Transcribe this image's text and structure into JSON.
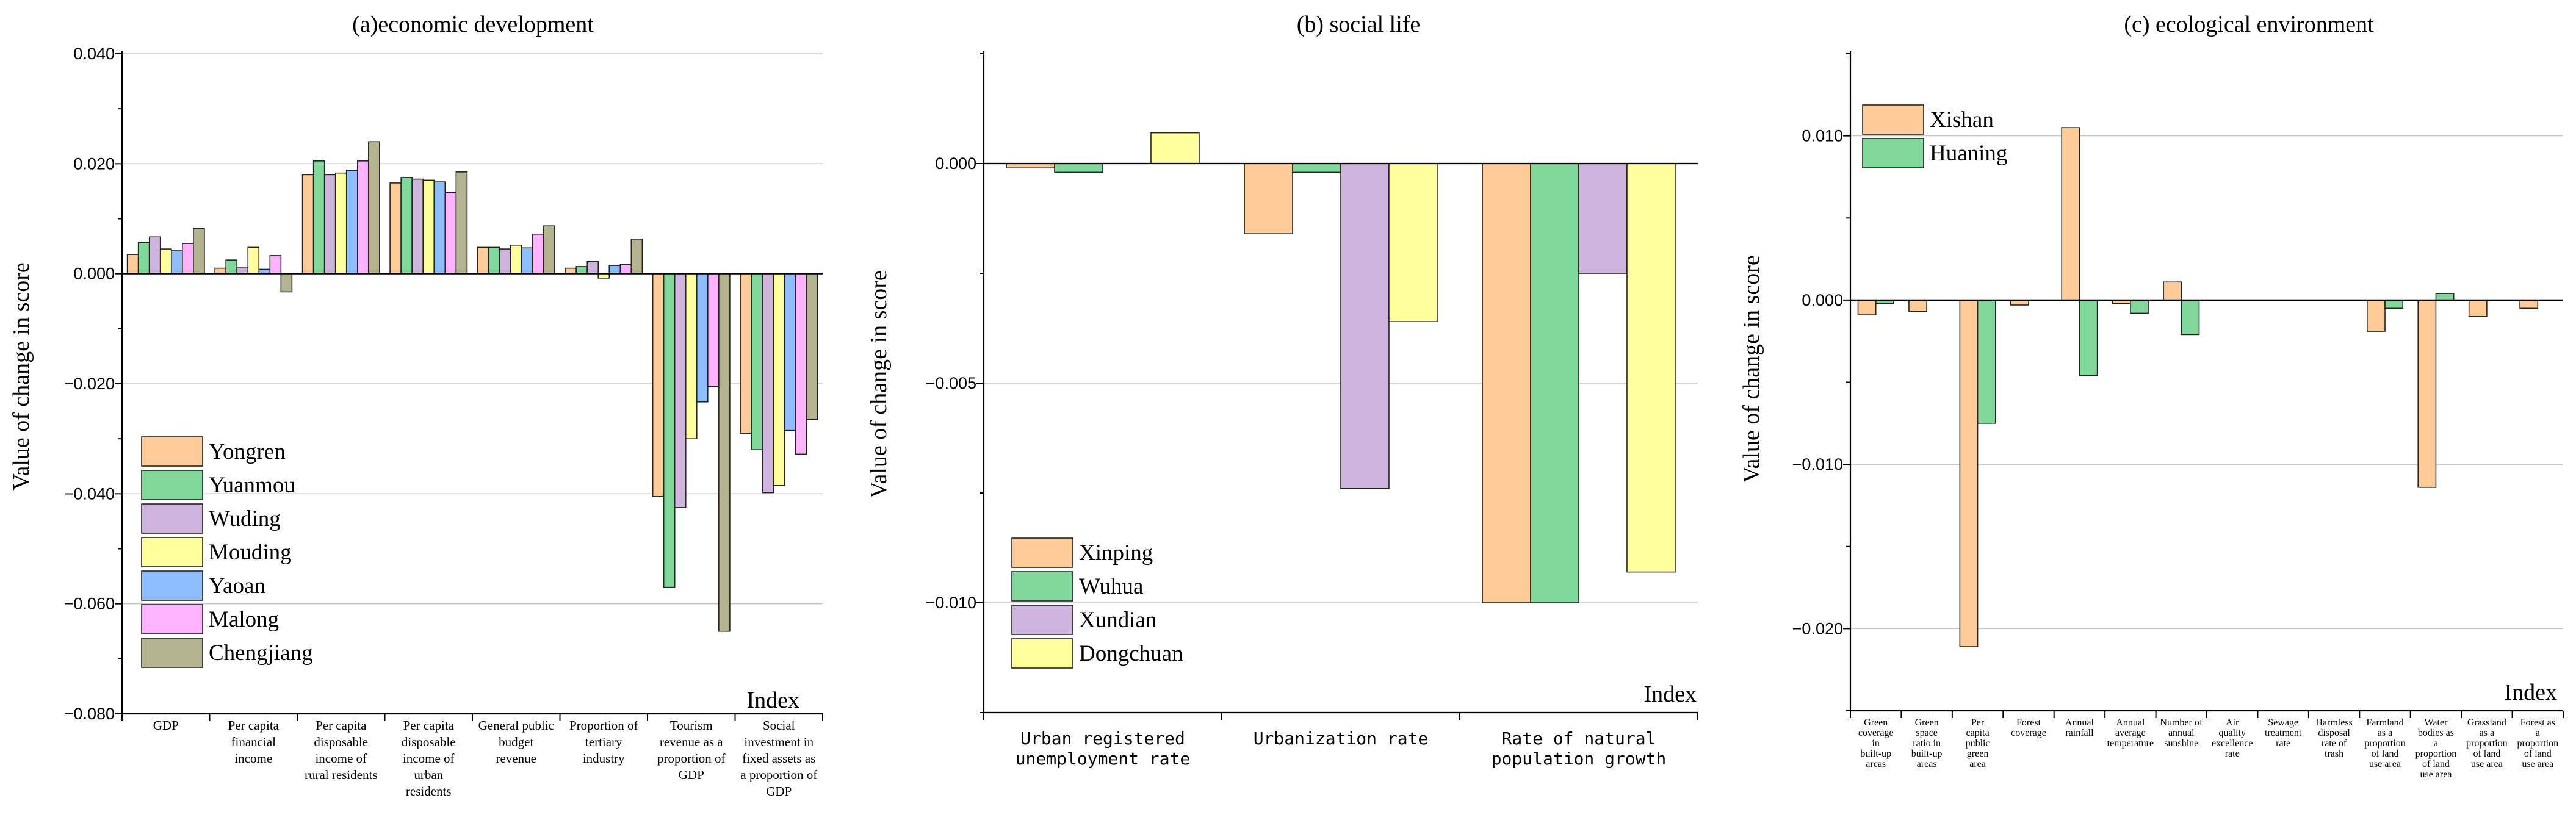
{
  "colors": {
    "Yongren": "#FFCC99",
    "Yuanmou": "#80D89A",
    "Wuding": "#CFB5DE",
    "Mouding": "#FFFF9E",
    "Yaoan": "#8EBEFF",
    "Malong": "#FFB3FF",
    "Chengjiang": "#B3B38F",
    "Xinping": "#FFCC99",
    "Wuhua": "#80D89A",
    "Xundian": "#CFB5DE",
    "Dongchuan": "#FFFF9E",
    "Xishan": "#FFCC99",
    "Huaning": "#80D89A"
  },
  "chart_data": [
    {
      "type": "bar",
      "title": "(a)economic development",
      "xlabel": "Index",
      "ylabel": "Value of change in score",
      "ylim": [
        -0.08,
        0.04
      ],
      "yticks": [
        0.04,
        0.02,
        0.0,
        -0.02,
        -0.04,
        -0.06,
        -0.08
      ],
      "ytick_labels": [
        "0.040",
        "0.020",
        "0.000",
        "−0.020",
        "−0.040",
        "−0.060",
        "−0.080"
      ],
      "grid": true,
      "legend_position": "bottom-left",
      "categories": [
        "GDP",
        "Per capita financial income",
        "Per capita disposable income of rural residents",
        "Per capita disposable income of urban residents",
        "General public budget revenue",
        "Proportion of tertiary industry",
        "Tourism revenue as a proportion of GDP",
        "Social investment in fixed assets as a proportion of GDP"
      ],
      "category_lines": [
        [
          "GDP"
        ],
        [
          "Per capita",
          "financial",
          "income"
        ],
        [
          "Per capita",
          "disposable",
          "income of",
          "rural residents"
        ],
        [
          "Per capita",
          "disposable",
          "income of",
          "urban",
          "residents"
        ],
        [
          "General public",
          "budget",
          "revenue"
        ],
        [
          "Proportion of",
          "tertiary",
          "industry"
        ],
        [
          "Tourism",
          "revenue as a",
          "proportion of",
          "GDP"
        ],
        [
          "Social",
          "investment in",
          "fixed assets as",
          "a proportion of",
          "GDP"
        ]
      ],
      "series": [
        {
          "name": "Yongren",
          "values": [
            0.0035,
            0.001,
            0.018,
            0.0165,
            0.0048,
            0.001,
            -0.0405,
            -0.029
          ]
        },
        {
          "name": "Yuanmou",
          "values": [
            0.0057,
            0.0025,
            0.0205,
            0.0175,
            0.0048,
            0.0013,
            -0.057,
            -0.032
          ]
        },
        {
          "name": "Wuding",
          "values": [
            0.0067,
            0.0012,
            0.018,
            0.0172,
            0.0045,
            0.0022,
            -0.0425,
            -0.0398
          ]
        },
        {
          "name": "Mouding",
          "values": [
            0.0045,
            0.0048,
            0.0183,
            0.017,
            0.0052,
            -0.0008,
            -0.03,
            -0.0385
          ]
        },
        {
          "name": "Yaoan",
          "values": [
            0.0043,
            0.0008,
            0.0188,
            0.0167,
            0.0047,
            0.0015,
            -0.0233,
            -0.0285
          ]
        },
        {
          "name": "Malong",
          "values": [
            0.0055,
            0.0033,
            0.0205,
            0.0148,
            0.0072,
            0.0017,
            -0.0205,
            -0.0328
          ]
        },
        {
          "name": "Chengjiang",
          "values": [
            0.0082,
            -0.0033,
            0.024,
            0.0185,
            0.0087,
            0.0063,
            -0.065,
            -0.0265
          ]
        }
      ]
    },
    {
      "type": "bar",
      "title": "(b) social life",
      "xlabel": "Index",
      "ylabel": "Value of change in score",
      "ylim": [
        -0.0125,
        0.0025
      ],
      "yticks": [
        0.0,
        -0.005,
        -0.01
      ],
      "ytick_labels": [
        "0.000",
        "−0.005",
        "−0.010"
      ],
      "grid": true,
      "legend_position": "bottom-left",
      "categories": [
        "Urban registered unemployment rate",
        "Urbanization rate",
        "Rate of natural population growth"
      ],
      "category_lines": [
        [
          "Urban registered",
          "unemployment rate"
        ],
        [
          "Urbanization rate"
        ],
        [
          "Rate of natural",
          "population growth"
        ]
      ],
      "series": [
        {
          "name": "Xinping",
          "values": [
            -0.0001,
            -0.0016,
            -0.01
          ]
        },
        {
          "name": "Wuhua",
          "values": [
            -0.0002,
            -0.0002,
            -0.01
          ]
        },
        {
          "name": "Xundian",
          "values": [
            0.0,
            -0.0074,
            -0.0025
          ]
        },
        {
          "name": "Dongchuan",
          "values": [
            0.0007,
            -0.0036,
            -0.0093
          ]
        }
      ]
    },
    {
      "type": "bar",
      "title": "(c) ecological environment",
      "xlabel": "Index",
      "ylabel": "Value of change in score",
      "ylim": [
        -0.025,
        0.015
      ],
      "yticks": [
        0.01,
        0.0,
        -0.01,
        -0.02
      ],
      "ytick_labels": [
        "0.010",
        "0.000",
        "−0.010",
        "−0.020"
      ],
      "grid": true,
      "legend_position": "top-left",
      "categories": [
        "Green coverage in built-up areas",
        "Green space ratio in built-up areas",
        "Per capita public green area",
        "Forest coverage",
        "Annual rainfall",
        "Annual average temperature",
        "Number of annual sunshine",
        "Air quality excellence rate",
        "Sewage treatment rate",
        "Harmless disposal rate of trash",
        "Farmland as a proportion of land use area",
        "Water bodies as a proportion of land use area",
        "Grassland as a proportion of land use area",
        "Forest as a proportion of land use area"
      ],
      "category_lines": [
        [
          "Green",
          "coverage",
          "in",
          "built-up",
          "areas"
        ],
        [
          "Green",
          "space",
          "ratio in",
          "built-up",
          "areas"
        ],
        [
          "Per",
          "capita",
          "public",
          "green",
          "area"
        ],
        [
          "Forest",
          "coverage"
        ],
        [
          "Annual",
          "rainfall"
        ],
        [
          "Annual",
          "average",
          "temperature"
        ],
        [
          "Number of",
          "annual",
          "sunshine"
        ],
        [
          "Air",
          "quality",
          "excellence",
          "rate"
        ],
        [
          "Sewage",
          "treatment",
          "rate"
        ],
        [
          "Harmless",
          "disposal",
          "rate of",
          "trash"
        ],
        [
          "Farmland",
          "as a",
          "proportion",
          "of land",
          "use area"
        ],
        [
          "Water",
          "bodies as",
          "a",
          "proportion",
          "of land",
          "use area"
        ],
        [
          "Grassland",
          "as a",
          "proportion",
          "of land",
          "use area"
        ],
        [
          "Forest as",
          "a",
          "proportion",
          "of land",
          "use area"
        ]
      ],
      "series": [
        {
          "name": "Xishan",
          "values": [
            -0.0009,
            -0.0007,
            -0.0211,
            -0.0003,
            0.0105,
            -0.0002,
            0.0011,
            0.0,
            0.0,
            0.0,
            -0.0019,
            -0.0114,
            -0.001,
            -0.0005
          ]
        },
        {
          "name": "Huaning",
          "values": [
            -0.0002,
            0.0,
            -0.0075,
            0.0,
            -0.0046,
            -0.0008,
            -0.0021,
            0.0,
            0.0,
            0.0,
            -0.0005,
            0.0004,
            0.0,
            0.0
          ]
        }
      ]
    }
  ]
}
